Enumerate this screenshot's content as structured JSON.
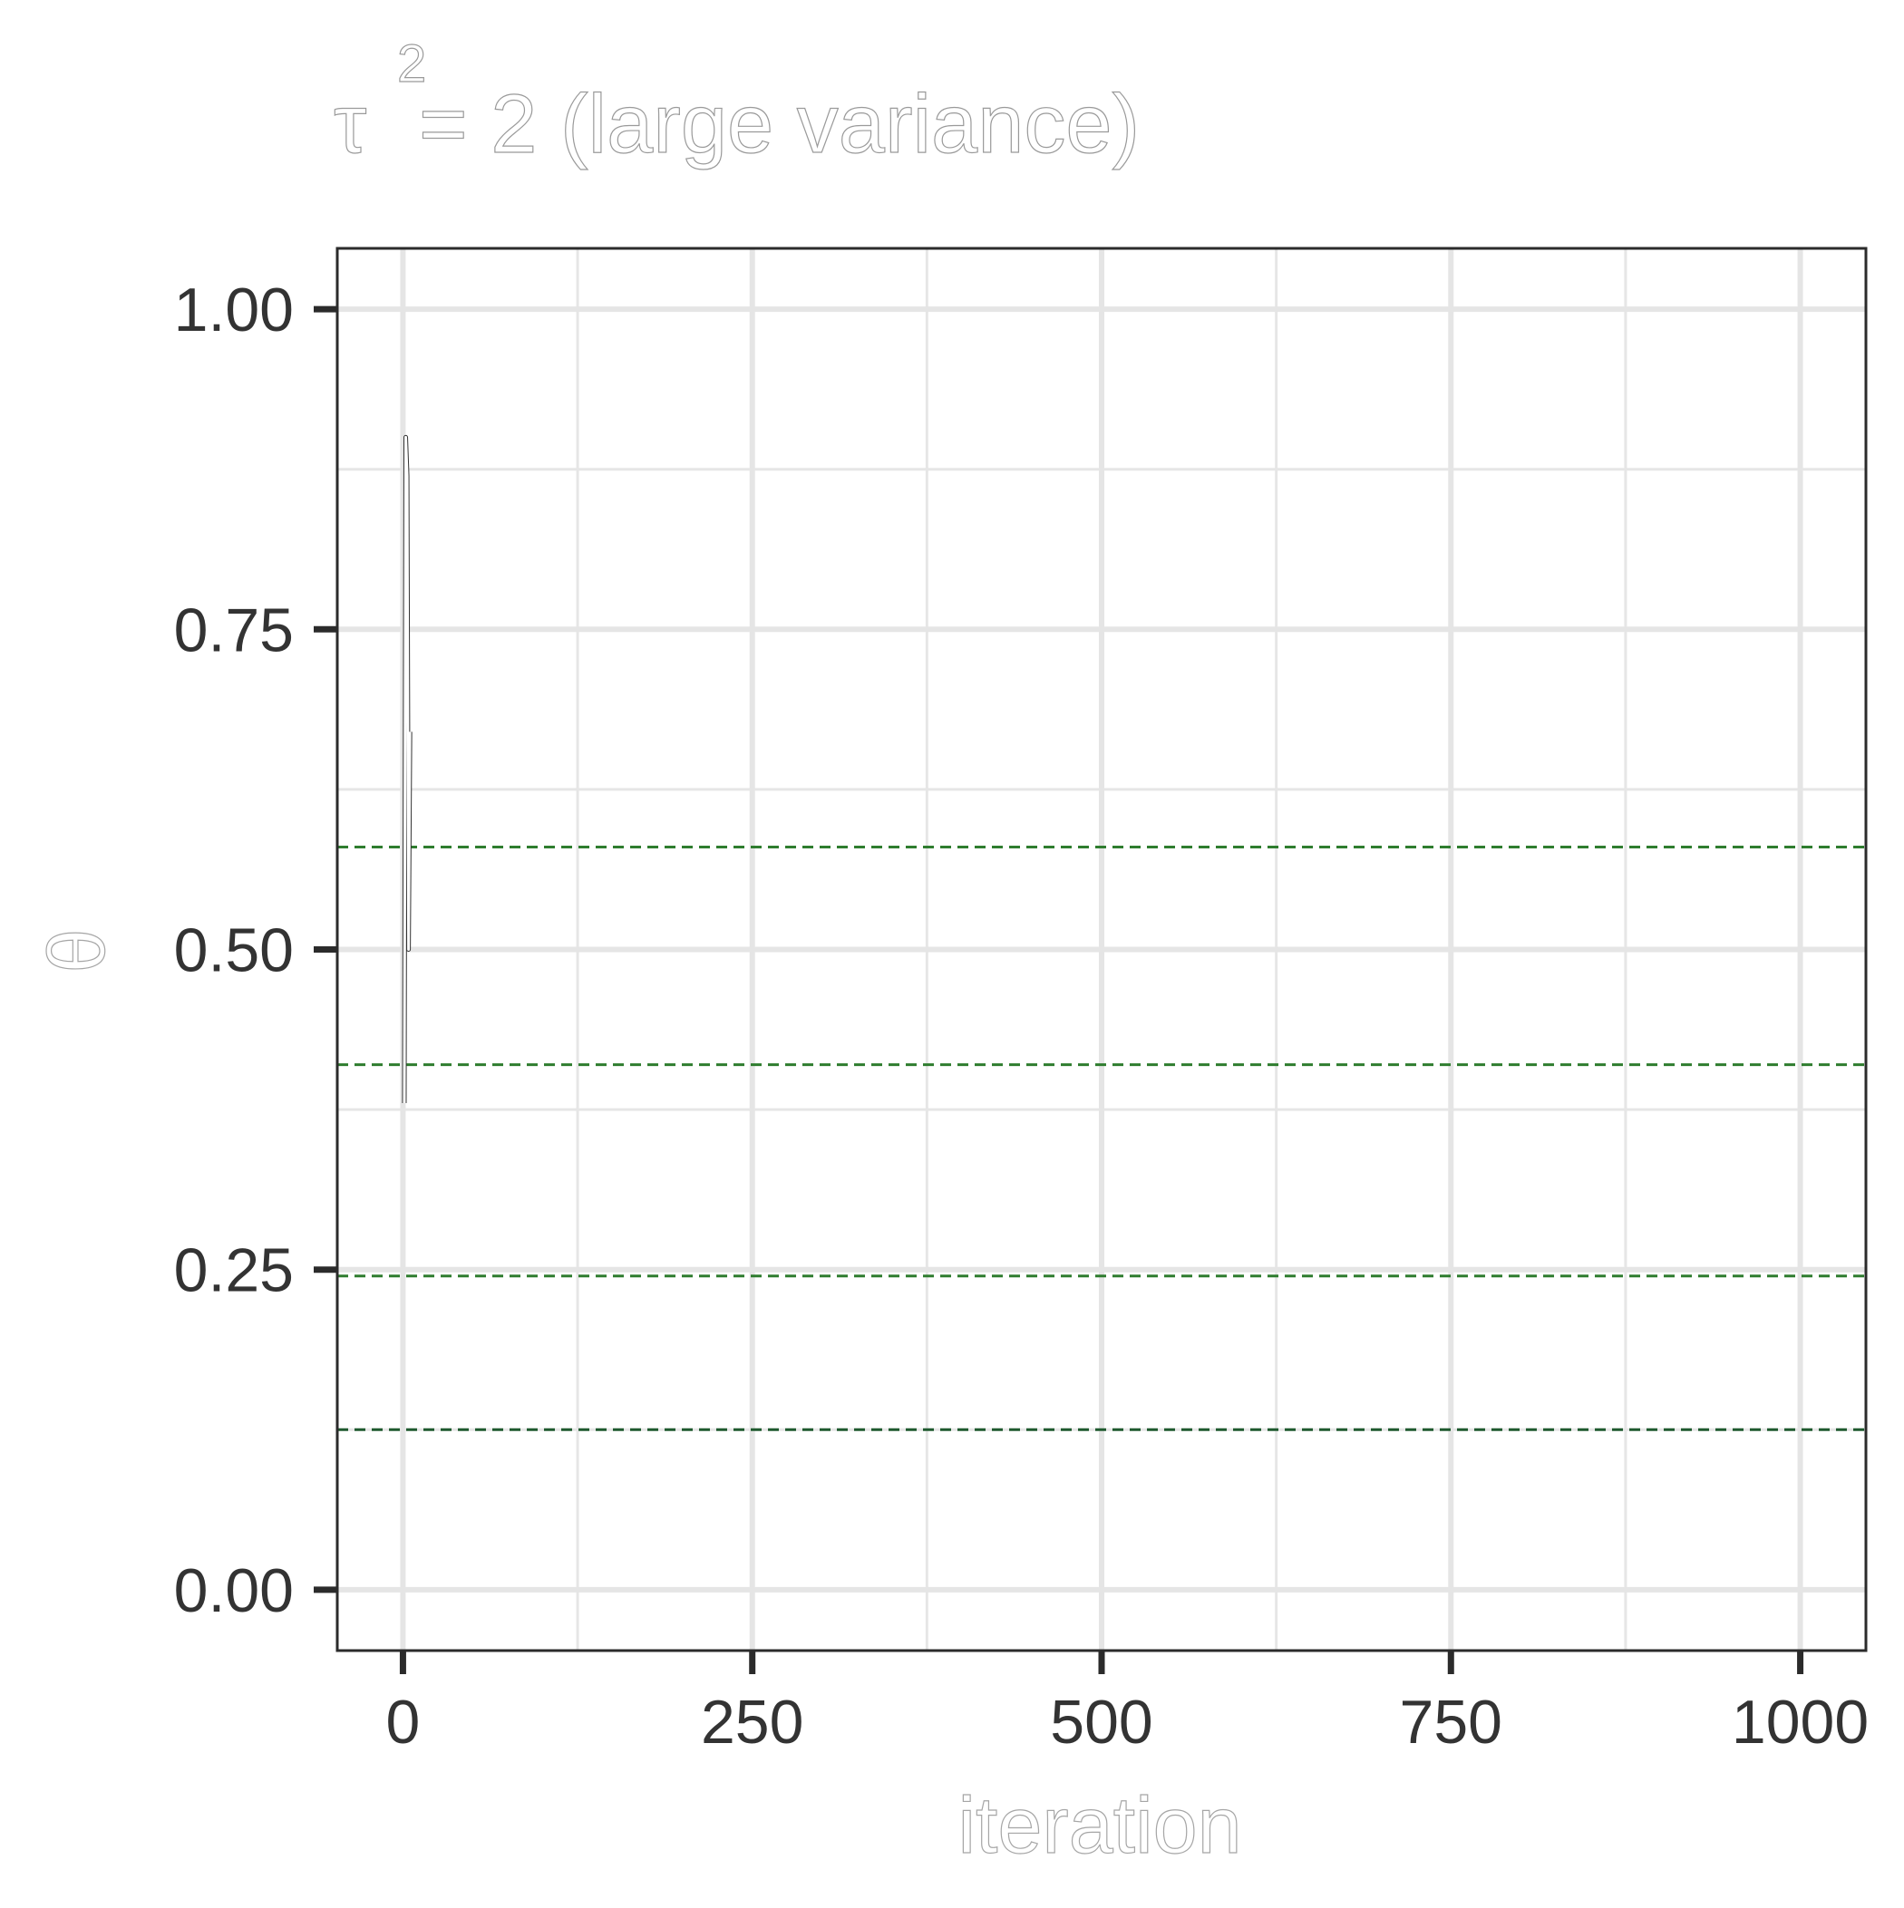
{
  "chart_data": {
    "type": "line",
    "title": "τ²= 2 (large variance)",
    "title_main": "τ",
    "title_sup": "2",
    "title_rest": "= 2 (large variance)",
    "xlabel": "iteration",
    "ylabel": "θ",
    "xlim": [
      -47,
      1047
    ],
    "ylim": [
      -0.0475,
      1.0475
    ],
    "x_ticks": [
      0,
      250,
      500,
      750,
      1000
    ],
    "x_tick_labels": [
      "0",
      "250",
      "500",
      "750",
      "1000"
    ],
    "y_ticks": [
      0,
      0.25,
      0.5,
      0.75,
      1
    ],
    "y_tick_labels": [
      "0.00",
      "0.25",
      "0.50",
      "0.75",
      "1.00"
    ],
    "x_minor": [
      125,
      375,
      625,
      875
    ],
    "y_minor": [
      0.125,
      0.375,
      0.625,
      0.875
    ],
    "grid": true,
    "series": [
      {
        "x": [
          1,
          2,
          3,
          4,
          5
        ],
        "values": [
          0.38,
          0.9,
          0.87,
          0.5,
          0.67
        ],
        "color": "#ffffff",
        "edge_color": "#333333"
      }
    ],
    "reference_lines": [
      {
        "y": 0.58,
        "color": "#2f7d2f"
      },
      {
        "y": 0.41,
        "color": "#2f7d2f"
      },
      {
        "y": 0.245,
        "color": "#2f7d2f"
      },
      {
        "y": 0.125,
        "color": "#1f5a2f"
      }
    ]
  }
}
